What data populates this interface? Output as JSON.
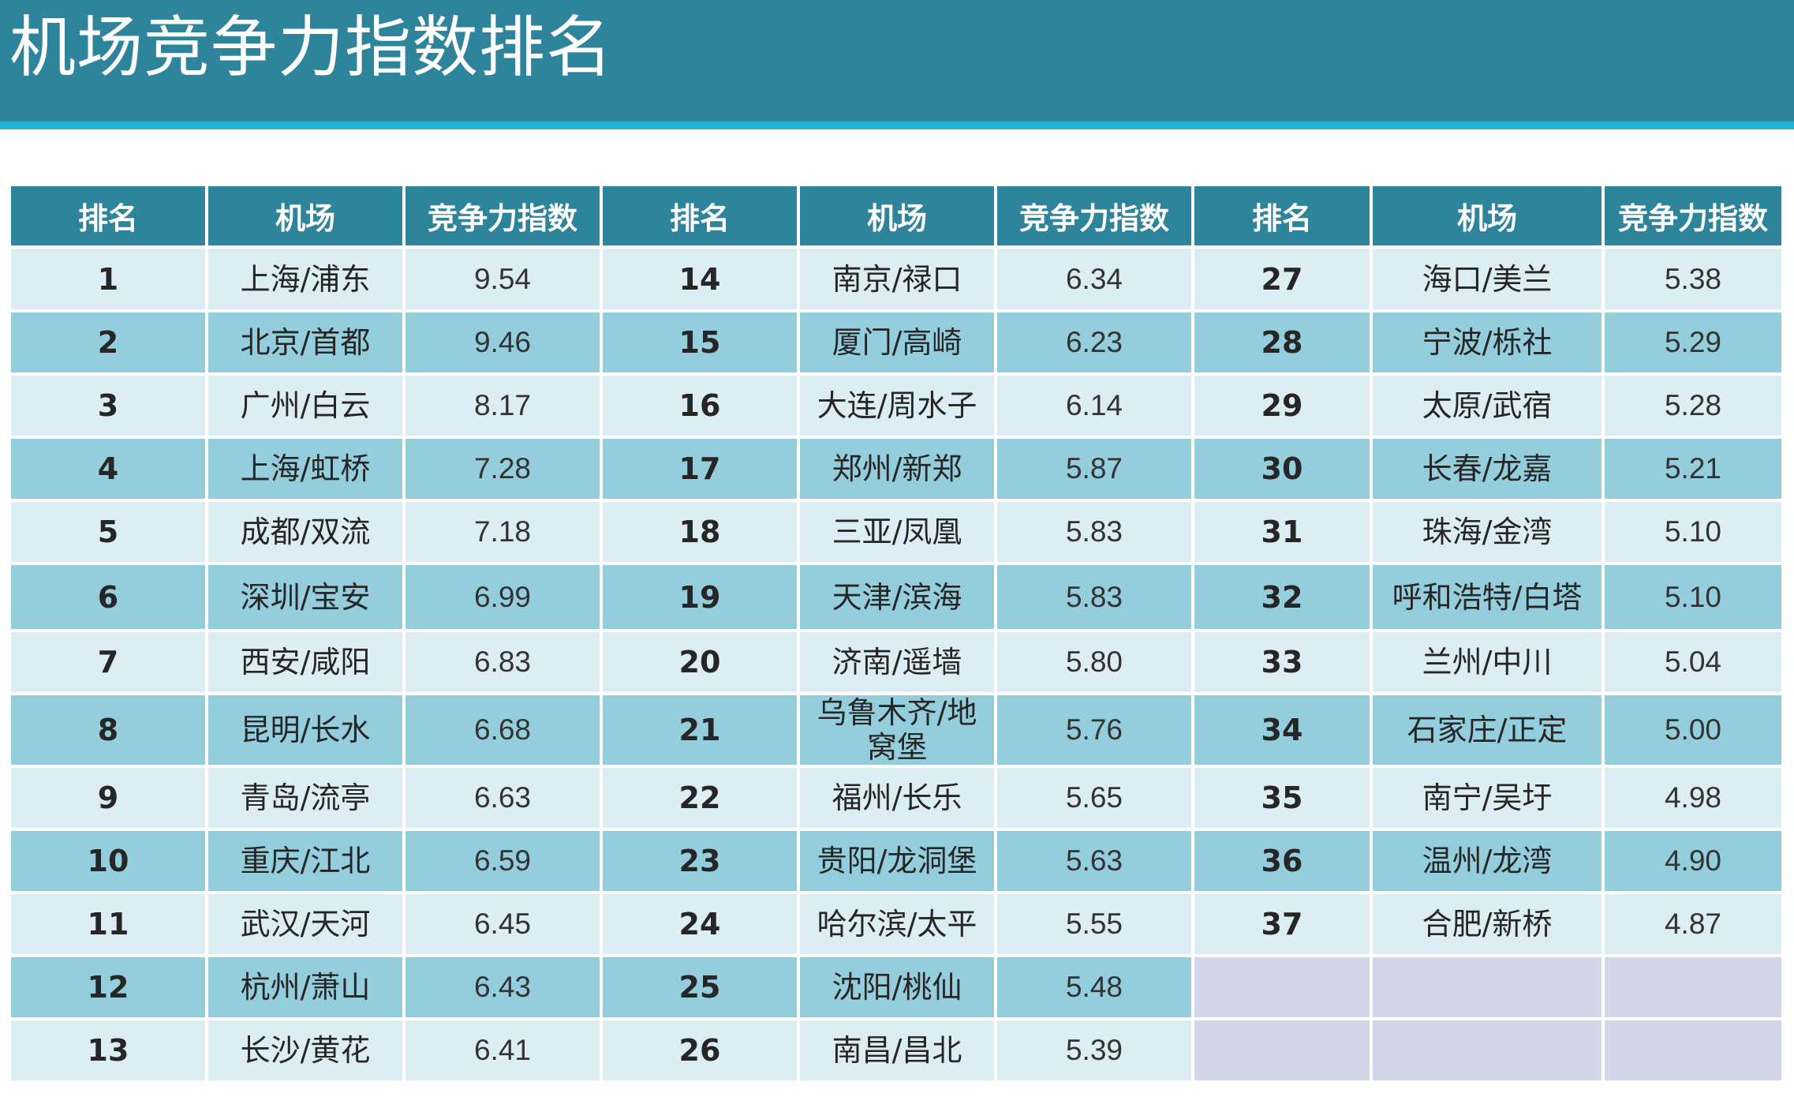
{
  "title": "机场竞争力指数排名",
  "headers": {
    "rank": "排名",
    "airport": "机场",
    "score": "竞争力指数"
  },
  "rows": [
    {
      "cells": [
        {
          "rank": "1",
          "airport": "上海/浦东",
          "score": "9.54"
        },
        {
          "rank": "14",
          "airport": "南京/禄口",
          "score": "6.34"
        },
        {
          "rank": "27",
          "airport": "海口/美兰",
          "score": "5.38"
        }
      ]
    },
    {
      "cells": [
        {
          "rank": "2",
          "airport": "北京/首都",
          "score": "9.46"
        },
        {
          "rank": "15",
          "airport": "厦门/高崎",
          "score": "6.23"
        },
        {
          "rank": "28",
          "airport": "宁波/栎社",
          "score": "5.29"
        }
      ]
    },
    {
      "cells": [
        {
          "rank": "3",
          "airport": "广州/白云",
          "score": "8.17"
        },
        {
          "rank": "16",
          "airport": "大连/周水子",
          "score": "6.14"
        },
        {
          "rank": "29",
          "airport": "太原/武宿",
          "score": "5.28"
        }
      ]
    },
    {
      "cells": [
        {
          "rank": "4",
          "airport": "上海/虹桥",
          "score": "7.28"
        },
        {
          "rank": "17",
          "airport": "郑州/新郑",
          "score": "5.87"
        },
        {
          "rank": "30",
          "airport": "长春/龙嘉",
          "score": "5.21"
        }
      ]
    },
    {
      "cells": [
        {
          "rank": "5",
          "airport": "成都/双流",
          "score": "7.18"
        },
        {
          "rank": "18",
          "airport": "三亚/凤凰",
          "score": "5.83"
        },
        {
          "rank": "31",
          "airport": "珠海/金湾",
          "score": "5.10"
        }
      ]
    },
    {
      "cells": [
        {
          "rank": "6",
          "airport": "深圳/宝安",
          "score": "6.99"
        },
        {
          "rank": "19",
          "airport": "天津/滨海",
          "score": "5.83"
        },
        {
          "rank": "32",
          "airport": "呼和浩特/白塔",
          "score": "5.10"
        }
      ]
    },
    {
      "cells": [
        {
          "rank": "7",
          "airport": "西安/咸阳",
          "score": "6.83"
        },
        {
          "rank": "20",
          "airport": "济南/遥墙",
          "score": "5.80"
        },
        {
          "rank": "33",
          "airport": "兰州/中川",
          "score": "5.04"
        }
      ]
    },
    {
      "cells": [
        {
          "rank": "8",
          "airport": "昆明/长水",
          "score": "6.68"
        },
        {
          "rank": "21",
          "airport": "乌鲁木齐/地窝堡",
          "score": "5.76"
        },
        {
          "rank": "34",
          "airport": "石家庄/正定",
          "score": "5.00"
        }
      ]
    },
    {
      "cells": [
        {
          "rank": "9",
          "airport": "青岛/流亭",
          "score": "6.63"
        },
        {
          "rank": "22",
          "airport": "福州/长乐",
          "score": "5.65"
        },
        {
          "rank": "35",
          "airport": "南宁/吴圩",
          "score": "4.98"
        }
      ]
    },
    {
      "cells": [
        {
          "rank": "10",
          "airport": "重庆/江北",
          "score": "6.59"
        },
        {
          "rank": "23",
          "airport": "贵阳/龙洞堡",
          "score": "5.63"
        },
        {
          "rank": "36",
          "airport": "温州/龙湾",
          "score": "4.90"
        }
      ]
    },
    {
      "cells": [
        {
          "rank": "11",
          "airport": "武汉/天河",
          "score": "6.45"
        },
        {
          "rank": "24",
          "airport": "哈尔滨/太平",
          "score": "5.55"
        },
        {
          "rank": "37",
          "airport": "合肥/新桥",
          "score": "4.87"
        }
      ]
    },
    {
      "cells": [
        {
          "rank": "12",
          "airport": "杭州/萧山",
          "score": "6.43"
        },
        {
          "rank": "25",
          "airport": "沈阳/桃仙",
          "score": "5.48"
        },
        null
      ]
    },
    {
      "cells": [
        {
          "rank": "13",
          "airport": "长沙/黄花",
          "score": "6.41"
        },
        {
          "rank": "26",
          "airport": "南昌/昌北",
          "score": "5.39"
        },
        null
      ]
    }
  ],
  "colors": {
    "header_bg": "#2e849b",
    "accent_stripe": "#22b2d2",
    "row_light": "#dcedf3",
    "row_dark": "#94cddc",
    "empty_cell": "#d3d6e9"
  }
}
